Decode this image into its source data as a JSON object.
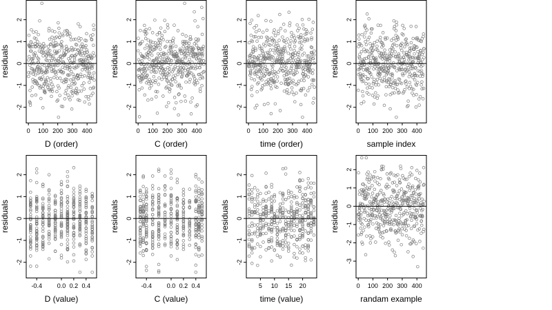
{
  "chart_data": [
    {
      "type": "scatter",
      "xlabel": "D (order)",
      "ylabel": "residuals",
      "x_kind": "order",
      "xlim": [
        -15,
        465
      ],
      "ylim": [
        -2.7,
        2.9
      ],
      "xticks": [
        0,
        100,
        200,
        300,
        400
      ],
      "xtick_labels": [
        "0",
        "100",
        "200",
        "300",
        "400"
      ],
      "yticks": [
        -2,
        -1,
        0,
        1,
        2
      ],
      "ytick_labels": [
        "-2",
        "-1",
        "0",
        "1",
        "2"
      ],
      "reference_line_y": 0,
      "points": []
    },
    {
      "type": "scatter",
      "xlabel": "C (order)",
      "ylabel": "residuals",
      "x_kind": "order",
      "xlim": [
        -15,
        465
      ],
      "ylim": [
        -2.7,
        2.9
      ],
      "xticks": [
        0,
        100,
        200,
        300,
        400
      ],
      "xtick_labels": [
        "0",
        "100",
        "200",
        "300",
        "400"
      ],
      "yticks": [
        -2,
        -1,
        0,
        1,
        2
      ],
      "ytick_labels": [
        "-2",
        "-1",
        "0",
        "1",
        "2"
      ],
      "reference_line_y": 0,
      "points": []
    },
    {
      "type": "scatter",
      "xlabel": "time (order)",
      "ylabel": "residuals",
      "x_kind": "order",
      "xlim": [
        -15,
        465
      ],
      "ylim": [
        -2.7,
        2.9
      ],
      "xticks": [
        0,
        100,
        200,
        300,
        400
      ],
      "xtick_labels": [
        "0",
        "100",
        "200",
        "300",
        "400"
      ],
      "yticks": [
        -2,
        -1,
        0,
        1,
        2
      ],
      "ytick_labels": [
        "-2",
        "-1",
        "0",
        "1",
        "2"
      ],
      "reference_line_y": 0,
      "points": []
    },
    {
      "type": "scatter",
      "xlabel": "sample index",
      "ylabel": "residuals",
      "x_kind": "order",
      "xlim": [
        -15,
        465
      ],
      "ylim": [
        -2.7,
        2.9
      ],
      "xticks": [
        0,
        100,
        200,
        300,
        400
      ],
      "xtick_labels": [
        "0",
        "100",
        "200",
        "300",
        "400"
      ],
      "yticks": [
        -2,
        -1,
        0,
        1,
        2
      ],
      "ytick_labels": [
        "-2",
        "-1",
        "0",
        "1",
        "2"
      ],
      "reference_line_y": 0,
      "points": []
    },
    {
      "type": "scatter",
      "xlabel": "D (value)",
      "ylabel": "residuals",
      "x_kind": "discrete",
      "x_levels": [
        -0.5,
        -0.4,
        -0.3,
        -0.2,
        -0.1,
        0.0,
        0.1,
        0.2,
        0.3,
        0.4,
        0.5
      ],
      "xlim": [
        -0.57,
        0.57
      ],
      "ylim": [
        -2.7,
        2.9
      ],
      "xticks": [
        -0.4,
        0.0,
        0.2,
        0.4
      ],
      "xtick_labels": [
        "-0.4",
        "0.0",
        "0.2",
        "0.4"
      ],
      "yticks": [
        -2,
        -1,
        0,
        1,
        2
      ],
      "ytick_labels": [
        "-2",
        "-1",
        "0",
        "1",
        "2"
      ],
      "reference_line_y": 0,
      "points": []
    },
    {
      "type": "scatter",
      "xlabel": "C (value)",
      "ylabel": "residuals",
      "x_kind": "discrete",
      "x_levels": [
        -0.5,
        -0.45,
        -0.4,
        -0.3,
        -0.2,
        -0.1,
        0.0,
        0.1,
        0.2,
        0.3,
        0.4,
        0.45,
        0.5
      ],
      "xlim": [
        -0.57,
        0.57
      ],
      "ylim": [
        -2.7,
        2.9
      ],
      "xticks": [
        -0.4,
        0.0,
        0.2,
        0.4
      ],
      "xtick_labels": [
        "-0.4",
        "0.0",
        "0.2",
        "0.4"
      ],
      "yticks": [
        -2,
        -1,
        0,
        1,
        2
      ],
      "ytick_labels": [
        "-2",
        "-1",
        "0",
        "1",
        "2"
      ],
      "reference_line_y": 0,
      "points": []
    },
    {
      "type": "scatter",
      "xlabel": "time (value)",
      "ylabel": "residuals",
      "x_kind": "discrete",
      "x_levels": [
        1,
        2,
        3,
        4,
        5,
        6,
        7,
        8,
        9,
        10,
        11,
        12,
        13,
        14,
        15,
        16,
        17,
        18,
        19,
        20,
        21,
        22,
        23,
        24
      ],
      "xlim": [
        0,
        25
      ],
      "ylim": [
        -2.7,
        2.9
      ],
      "xticks": [
        5,
        10,
        15,
        20
      ],
      "xtick_labels": [
        "5",
        "10",
        "15",
        "20"
      ],
      "yticks": [
        -2,
        -1,
        0,
        1,
        2
      ],
      "ytick_labels": [
        "-2",
        "-1",
        "0",
        "1",
        "2"
      ],
      "reference_line_y": 0,
      "points": []
    },
    {
      "type": "scatter",
      "xlabel": "randam example",
      "ylabel": "residuals",
      "x_kind": "order",
      "xlim": [
        -15,
        465
      ],
      "ylim": [
        -3.9,
        2.8
      ],
      "xticks": [
        0,
        100,
        200,
        300,
        400
      ],
      "xtick_labels": [
        "0",
        "100",
        "200",
        "300",
        "400"
      ],
      "yticks": [
        -3,
        -2,
        -1,
        0,
        1,
        2
      ],
      "ytick_labels": [
        "-3",
        "-2",
        "-1",
        "0",
        "1",
        "2"
      ],
      "reference_line_y": 0,
      "points": []
    }
  ]
}
